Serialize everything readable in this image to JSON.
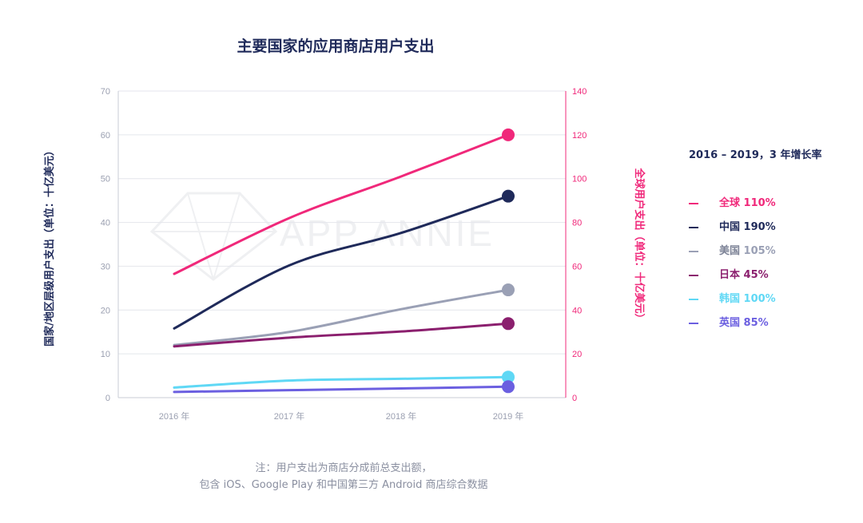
{
  "chart_data": {
    "type": "line",
    "title": "主要国家的应用商店用户支出",
    "x": [
      "2016 年",
      "2017 年",
      "2018 年",
      "2019 年"
    ],
    "ylabel_left": "国家/地区层级用户支出（单位：十亿美元）",
    "ylabel_right": "全球用户支出（单位：十亿美元）",
    "ylim_left": [
      0,
      70
    ],
    "ylim_right": [
      0,
      140
    ],
    "yticks_left": [
      0,
      10,
      20,
      30,
      40,
      50,
      60,
      70
    ],
    "yticks_right": [
      0,
      20,
      40,
      60,
      80,
      100,
      120,
      140
    ],
    "grid": true,
    "series": [
      {
        "name": "全球",
        "axis": "right",
        "color": "#f0287a",
        "values": [
          56.5,
          82,
          101,
          120
        ]
      },
      {
        "name": "中国",
        "axis": "left",
        "color": "#1f2a5a",
        "values": [
          15.8,
          30.2,
          37.6,
          46
        ]
      },
      {
        "name": "美国",
        "axis": "left",
        "color": "#9aa0b5",
        "values": [
          12,
          15,
          20.2,
          24.6
        ]
      },
      {
        "name": "日本",
        "axis": "left",
        "color": "#8b1f6e",
        "values": [
          11.7,
          13.7,
          15.1,
          16.9
        ]
      },
      {
        "name": "韩国",
        "axis": "left",
        "color": "#5fd8f5",
        "values": [
          2.3,
          3.9,
          4.3,
          4.7
        ]
      },
      {
        "name": "英国",
        "axis": "left",
        "color": "#6b5fe0",
        "values": [
          1.3,
          1.7,
          2.1,
          2.5
        ]
      }
    ],
    "legend": {
      "title": "2016 – 2019，3 年增长率",
      "position": "right",
      "items": [
        {
          "name": "全球",
          "growth": "110%",
          "color": "#f0287a"
        },
        {
          "name": "中国",
          "growth": "190%",
          "color": "#1f2a5a"
        },
        {
          "name": "美国",
          "growth": "105%",
          "color": "#9aa0b5"
        },
        {
          "name": "日本",
          "growth": "45%",
          "color": "#8b1f6e"
        },
        {
          "name": "韩国",
          "growth": "100%",
          "color": "#5fd8f5"
        },
        {
          "name": "英国",
          "growth": "85%",
          "color": "#6b5fe0"
        }
      ]
    }
  },
  "watermark": "APP ANNIE",
  "note": {
    "line1": "注：用户支出为商店分成前总支出额，",
    "line2": "包含 iOS、Google Play 和中国第三方 Android 商店综合数据"
  }
}
